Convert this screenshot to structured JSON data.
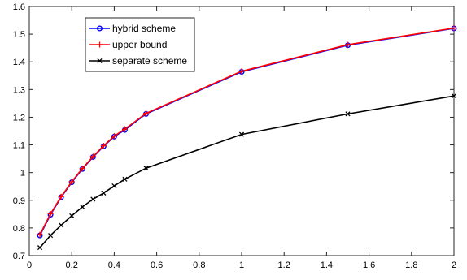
{
  "chart_data": {
    "type": "line",
    "title": "",
    "xlabel": "",
    "ylabel": "",
    "xlim": [
      0,
      2
    ],
    "ylim": [
      0.7,
      1.6
    ],
    "xticks": [
      0,
      0.2,
      0.4,
      0.6,
      0.8,
      1,
      1.2,
      1.4,
      1.6,
      1.8,
      2
    ],
    "xtick_labels": [
      "0",
      "0.2",
      "0.4",
      "0.6",
      "0.8",
      "1",
      "1.2",
      "1.4",
      "1.6",
      "1.8",
      "2"
    ],
    "yticks": [
      0.7,
      0.8,
      0.9,
      1.0,
      1.1,
      1.2,
      1.3,
      1.4,
      1.5,
      1.6
    ],
    "ytick_labels": [
      "0.7",
      "0.8",
      "0.9",
      "1",
      "1.1",
      "1.2",
      "1.3",
      "1.4",
      "1.5",
      "1.6"
    ],
    "grid": false,
    "legend_position": "top-left",
    "series": [
      {
        "name": "hybrid scheme",
        "color": "#0000ff",
        "marker": "circle",
        "x": [
          0.05,
          0.1,
          0.15,
          0.2,
          0.25,
          0.3,
          0.35,
          0.4,
          0.45,
          0.55,
          1.0,
          1.5,
          2.0
        ],
        "y": [
          0.773,
          0.848,
          0.911,
          0.965,
          1.013,
          1.056,
          1.095,
          1.13,
          1.154,
          1.212,
          1.364,
          1.46,
          1.521
        ]
      },
      {
        "name": "upper bound",
        "color": "#ff0000",
        "marker": "plus",
        "x": [
          0.05,
          0.1,
          0.15,
          0.2,
          0.25,
          0.3,
          0.35,
          0.4,
          0.45,
          0.55,
          1.0,
          1.5,
          2.0
        ],
        "y": [
          0.776,
          0.851,
          0.913,
          0.967,
          1.015,
          1.058,
          1.097,
          1.132,
          1.157,
          1.214,
          1.366,
          1.462,
          1.522
        ]
      },
      {
        "name": "separate scheme",
        "color": "#000000",
        "marker": "x",
        "x": [
          0.05,
          0.1,
          0.15,
          0.2,
          0.25,
          0.3,
          0.35,
          0.4,
          0.45,
          0.55,
          1.0,
          1.5,
          2.0
        ],
        "y": [
          0.729,
          0.773,
          0.81,
          0.844,
          0.876,
          0.904,
          0.926,
          0.952,
          0.976,
          1.016,
          1.138,
          1.212,
          1.277
        ]
      }
    ]
  }
}
